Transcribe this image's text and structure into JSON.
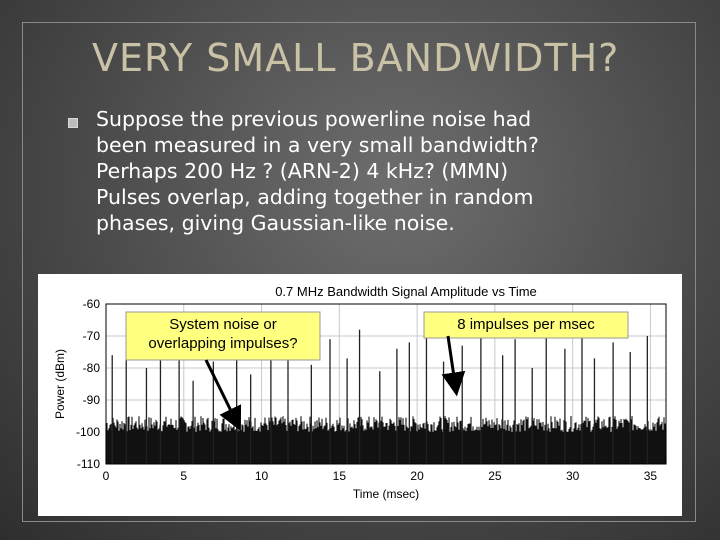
{
  "slide": {
    "title": "VERY SMALL BANDWIDTH?",
    "body_lines": [
      " Suppose the previous powerline noise had",
      "been measured  in a very small bandwidth?",
      "Perhaps 200 Hz ? (ARN-2)   4 kHz?  (MMN)",
      "Pulses overlap, adding together in random",
      "phases, giving Gaussian-like noise."
    ],
    "bullet_icon": "square-bullet-icon"
  },
  "chart_data": {
    "type": "line",
    "title": "0.7 MHz Bandwidth Signal Amplitude vs Time",
    "xlabel": "Time (msec)",
    "ylabel": "Power (dBm)",
    "xlim": [
      0,
      36
    ],
    "ylim": [
      -110,
      -60
    ],
    "xticks": [
      0,
      5,
      10,
      15,
      20,
      25,
      30,
      35
    ],
    "yticks": [
      -60,
      -70,
      -80,
      -90,
      -100,
      -110
    ],
    "grid": true,
    "noise_floor_dbm": -103,
    "impulse_times_msec": [
      0.4,
      1.3,
      2.6,
      3.5,
      4.7,
      5.6,
      6.9,
      8.4,
      9.3,
      10.6,
      11.7,
      13.2,
      14.4,
      15.5,
      16.3,
      17.6,
      18.7,
      19.5,
      20.6,
      21.7,
      22.9,
      24.1,
      25.5,
      26.3,
      27.4,
      28.3,
      29.5,
      30.6,
      31.4,
      32.6,
      33.7,
      34.8
    ],
    "impulse_peaks_dbm": [
      -76,
      -72,
      -80,
      -74,
      -70,
      -84,
      -78,
      -73,
      -82,
      -69,
      -75,
      -79,
      -71,
      -77,
      -68,
      -81,
      -74,
      -72,
      -70,
      -78,
      -73,
      -66,
      -76,
      -71,
      -80,
      -69,
      -74,
      -68,
      -77,
      -72,
      -75,
      -70
    ],
    "annotations": [
      {
        "text_lines": [
          "System noise or",
          "overlapping impulses?"
        ],
        "arrow_to": [
          8.5,
          -98
        ]
      },
      {
        "text_lines": [
          "8 impulses per msec"
        ],
        "arrow_to": [
          22.5,
          -87
        ]
      }
    ]
  }
}
